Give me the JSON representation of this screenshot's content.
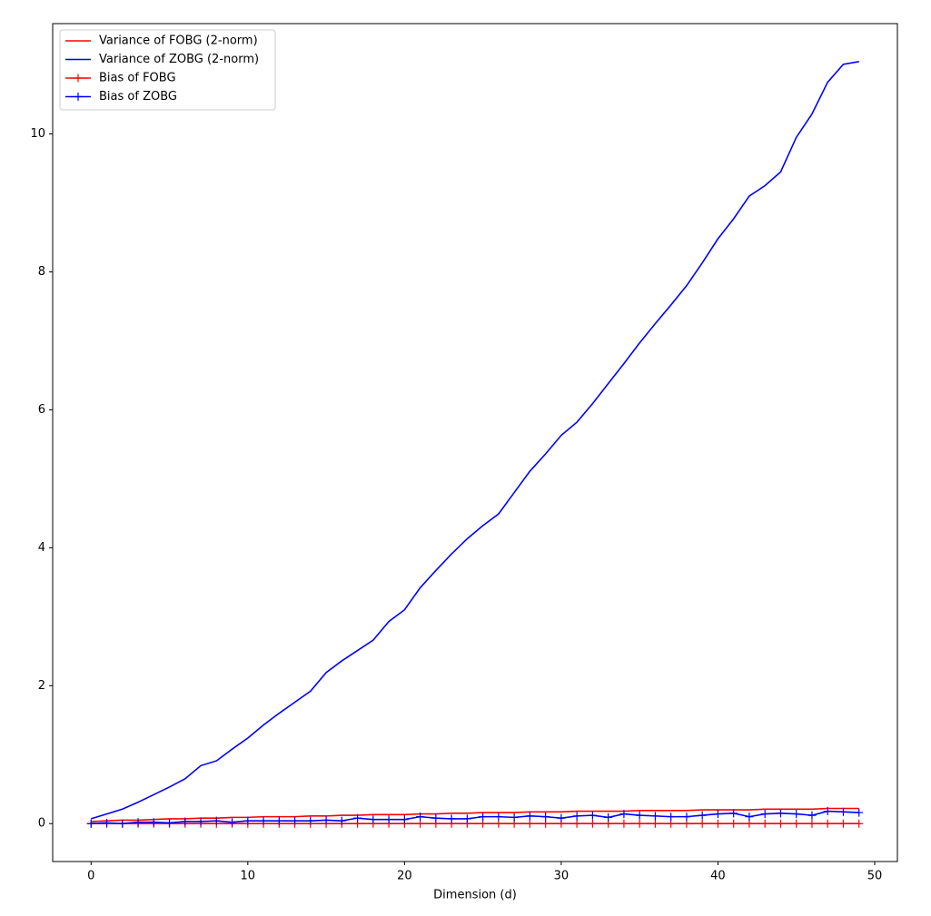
{
  "chart_data": {
    "type": "line",
    "xlabel": "Dimension (d)",
    "x": [
      0,
      1,
      2,
      3,
      4,
      5,
      6,
      7,
      8,
      9,
      10,
      11,
      12,
      13,
      14,
      15,
      16,
      17,
      18,
      19,
      20,
      21,
      22,
      23,
      24,
      25,
      26,
      27,
      28,
      29,
      30,
      31,
      32,
      33,
      34,
      35,
      36,
      37,
      38,
      39,
      40,
      41,
      42,
      43,
      44,
      45,
      46,
      47,
      48,
      49
    ],
    "series": [
      {
        "name": "Variance of FOBG (2-norm)",
        "color": "#ff0000",
        "marker": "none",
        "values": [
          0.03,
          0.04,
          0.05,
          0.05,
          0.06,
          0.07,
          0.07,
          0.08,
          0.08,
          0.09,
          0.09,
          0.1,
          0.1,
          0.1,
          0.11,
          0.11,
          0.12,
          0.12,
          0.13,
          0.13,
          0.13,
          0.14,
          0.14,
          0.15,
          0.15,
          0.16,
          0.16,
          0.16,
          0.17,
          0.17,
          0.17,
          0.18,
          0.18,
          0.18,
          0.18,
          0.19,
          0.19,
          0.19,
          0.19,
          0.2,
          0.2,
          0.2,
          0.2,
          0.21,
          0.21,
          0.21,
          0.21,
          0.22,
          0.22,
          0.22
        ]
      },
      {
        "name": "Variance of ZOBG (2-norm)",
        "color": "#0000ff",
        "marker": "none",
        "values": [
          0.07,
          0.14,
          0.21,
          0.31,
          0.42,
          0.53,
          0.65,
          0.84,
          0.91,
          1.08,
          1.24,
          1.43,
          1.6,
          1.76,
          1.92,
          2.19,
          2.36,
          2.51,
          2.66,
          2.93,
          3.1,
          3.42,
          3.67,
          3.91,
          4.13,
          4.32,
          4.49,
          4.8,
          5.11,
          5.36,
          5.63,
          5.82,
          6.09,
          6.38,
          6.67,
          6.97,
          7.25,
          7.52,
          7.8,
          8.13,
          8.48,
          8.77,
          9.1,
          9.25,
          9.45,
          9.95,
          10.29,
          10.75,
          11.01,
          11.05
        ]
      },
      {
        "name": "Bias of FOBG",
        "color": "#ff0000",
        "marker": "+",
        "values": [
          0,
          0,
          0,
          0,
          0,
          0,
          0,
          0,
          0,
          0,
          0,
          0,
          0,
          0,
          0,
          0,
          0,
          0,
          0,
          0,
          0,
          0,
          0,
          0,
          0,
          0,
          0,
          0,
          0,
          0,
          0,
          0,
          0,
          0,
          0,
          0,
          0,
          0,
          0,
          0,
          0,
          0,
          0,
          0,
          0,
          0,
          0,
          0,
          0,
          0
        ]
      },
      {
        "name": "Bias of ZOBG",
        "color": "#0000ff",
        "marker": "+",
        "values": [
          0.0,
          0.01,
          0.0,
          0.02,
          0.02,
          0.01,
          0.03,
          0.03,
          0.04,
          0.02,
          0.04,
          0.04,
          0.04,
          0.04,
          0.04,
          0.05,
          0.04,
          0.08,
          0.06,
          0.06,
          0.06,
          0.1,
          0.08,
          0.07,
          0.07,
          0.1,
          0.1,
          0.09,
          0.11,
          0.1,
          0.08,
          0.11,
          0.12,
          0.09,
          0.14,
          0.12,
          0.11,
          0.1,
          0.1,
          0.12,
          0.14,
          0.15,
          0.1,
          0.14,
          0.15,
          0.14,
          0.12,
          0.18,
          0.17,
          0.16
        ]
      }
    ],
    "xlim": [
      -2.45,
      51.45
    ],
    "xticks": [
      0,
      10,
      20,
      30,
      40,
      50
    ],
    "ylim": [
      -0.55,
      11.6
    ],
    "yticks": [
      0,
      2,
      4,
      6,
      8,
      10
    ],
    "grid": false,
    "legend": "upper-left"
  }
}
